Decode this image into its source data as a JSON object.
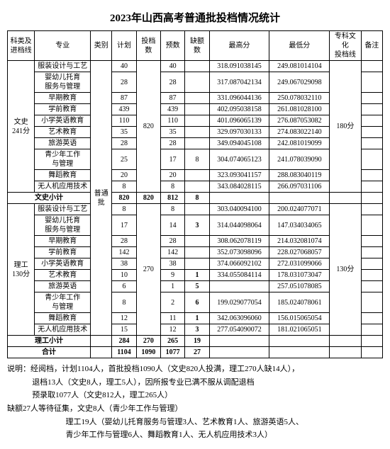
{
  "title": "2023年山西高考普通批投档情况统计",
  "headers": {
    "c0": "科类及\n进档线",
    "c1": "专业",
    "c2": "类别",
    "c3": "计划",
    "c4": "投档数",
    "c5": "预数",
    "c6": "缺额数",
    "c7": "最高分",
    "c8": "最低分",
    "c9": "专科文化\n投档线",
    "c10": "备注"
  },
  "cat1": {
    "name": "文史\n241分",
    "batch": "普通批",
    "plan_total": "820",
    "line": "180分"
  },
  "ws": [
    {
      "major": "服装设计与工艺",
      "plan": "40",
      "pre": "40",
      "short": "",
      "hi": "318.091038145",
      "lo": "249.081014104"
    },
    {
      "major": "婴幼儿托育\n服务与管理",
      "plan": "28",
      "pre": "28",
      "short": "",
      "hi": "317.087042134",
      "lo": "249.067029098"
    },
    {
      "major": "早期教育",
      "plan": "87",
      "pre": "87",
      "short": "",
      "hi": "331.096044136",
      "lo": "250.078032110"
    },
    {
      "major": "学前教育",
      "plan": "439",
      "pre": "439",
      "short": "",
      "hi": "402.095038158",
      "lo": "261.081028100"
    },
    {
      "major": "小学英语教育",
      "plan": "110",
      "pre": "110",
      "short": "",
      "hi": "401.096065139",
      "lo": "276.087053082"
    },
    {
      "major": "艺术教育",
      "plan": "35",
      "pre": "35",
      "short": "",
      "hi": "329.097030133",
      "lo": "274.083022140"
    },
    {
      "major": "旅游英语",
      "plan": "28",
      "pre": "28",
      "short": "",
      "hi": "349.094045108",
      "lo": "242.081019099"
    },
    {
      "major": "青少年工作\n与管理",
      "plan": "25",
      "pre": "17",
      "short": "8",
      "hi": "304.074065123",
      "lo": "241.078039090"
    },
    {
      "major": "舞蹈教育",
      "plan": "20",
      "pre": "20",
      "short": "",
      "hi": "323.093041157",
      "lo": "288.083040119"
    },
    {
      "major": "无人机应用技术",
      "plan": "8",
      "pre": "8",
      "short": "",
      "hi": "343.084028115",
      "lo": "266.097031106"
    }
  ],
  "ws_sub": {
    "label": "文史小计",
    "plan": "820",
    "td": "820",
    "pre": "812",
    "short": "8"
  },
  "cat2": {
    "name": "理工\n130分",
    "plan_total": "270",
    "line": "130分"
  },
  "lg": [
    {
      "major": "服装设计与工艺",
      "plan": "8",
      "pre": "8",
      "short": "",
      "hi": "303.040094100",
      "lo": "200.024077071"
    },
    {
      "major": "婴幼儿托育\n服务与管理",
      "plan": "17",
      "pre": "14",
      "short": "3",
      "hi": "314.044098064",
      "lo": "147.034034065"
    },
    {
      "major": "早期教育",
      "plan": "28",
      "pre": "28",
      "short": "",
      "hi": "308.062078119",
      "lo": "214.032081074"
    },
    {
      "major": "学前教育",
      "plan": "142",
      "pre": "142",
      "short": "",
      "hi": "352.073098096",
      "lo": "228.027068057"
    },
    {
      "major": "小学英语教育",
      "plan": "38",
      "pre": "38",
      "short": "",
      "hi": "374.066092102",
      "lo": "272.031099066"
    },
    {
      "major": "艺术教育",
      "plan": "10",
      "pre": "9",
      "short": "1",
      "hi": "334.055084114",
      "lo": "178.031073047"
    },
    {
      "major": "旅游英语",
      "plan": "6",
      "pre": "1",
      "short": "5",
      "hi": "",
      "lo": "257.051078085"
    },
    {
      "major": "青少年工作\n与管理",
      "plan": "8",
      "pre": "2",
      "short": "6",
      "hi": "199.029077054",
      "lo": "185.024078061"
    },
    {
      "major": "舞蹈教育",
      "plan": "12",
      "pre": "11",
      "short": "1",
      "hi": "342.063096060",
      "lo": "156.015065054"
    },
    {
      "major": "无人机应用技术",
      "plan": "15",
      "pre": "12",
      "short": "3",
      "hi": "277.054090072",
      "lo": "181.021065051"
    }
  ],
  "lg_sub": {
    "label": "理工小计",
    "plan": "284",
    "td": "270",
    "pre": "265",
    "short": "19"
  },
  "total": {
    "label": "合计",
    "plan": "1104",
    "td": "1090",
    "pre": "1077",
    "short": "27"
  },
  "explain": {
    "l1": "说明：经阅档，计划1104人，首批投档1090人（文史820人投满，理工270人缺14人），",
    "l2": "退档13人（文史8人，理工5人），因所报专业已满不服从调配退档",
    "l3": "预录取1077人（文史812人，理工265人）",
    "l4": "缺额27人等待征集，文史8人（青少年工作与管理）",
    "l5": "理工19人（婴幼儿托育服务与管理3人、艺术教育1人、旅游英语5人、",
    "l6": "青少年工作与管理6人、舞蹈教育1人、无人机应用技术3人）"
  }
}
